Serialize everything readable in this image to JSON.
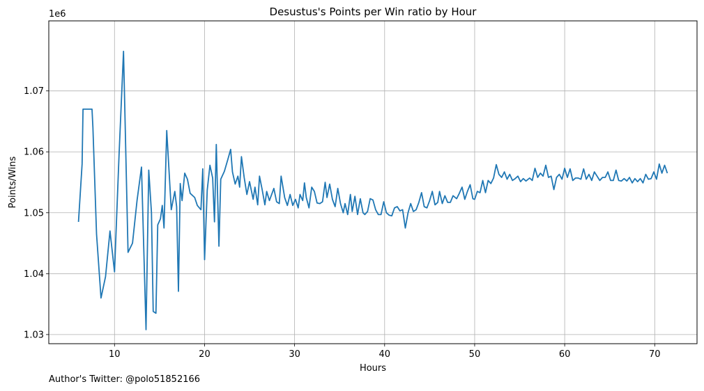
{
  "credit": "Author's Twitter: @polo51852166",
  "chart_data": {
    "type": "line",
    "title": "Desustus's Points per Win ratio by Hour",
    "xlabel": "Hours",
    "ylabel": "Points/Wins",
    "y_multiplier_label": "1e6",
    "xlim": [
      2.7,
      74.7
    ],
    "ylim": [
      1.0285,
      1.0815
    ],
    "x_ticks": [
      10,
      20,
      30,
      40,
      50,
      60,
      70
    ],
    "x_tick_labels": [
      "10",
      "20",
      "30",
      "40",
      "50",
      "60",
      "70"
    ],
    "y_ticks": [
      1.03,
      1.04,
      1.05,
      1.06,
      1.07
    ],
    "y_tick_labels": [
      "1.03",
      "1.04",
      "1.05",
      "1.06",
      "1.07"
    ],
    "grid": true,
    "color": "#1f77b4",
    "series": [
      {
        "values": [
          [
            6.0,
            1.0485
          ],
          [
            6.4,
            1.058
          ],
          [
            6.5,
            1.067
          ],
          [
            7.5,
            1.067
          ],
          [
            7.6,
            1.064
          ],
          [
            8.0,
            1.0465
          ],
          [
            8.5,
            1.036
          ],
          [
            9.0,
            1.0395
          ],
          [
            9.5,
            1.047
          ],
          [
            10.0,
            1.0403
          ],
          [
            10.5,
            1.0595
          ],
          [
            11.0,
            1.0765
          ],
          [
            11.5,
            1.0435
          ],
          [
            12.0,
            1.045
          ],
          [
            12.5,
            1.052
          ],
          [
            13.0,
            1.0575
          ],
          [
            13.5,
            1.0308
          ],
          [
            13.8,
            1.057
          ],
          [
            14.1,
            1.05
          ],
          [
            14.3,
            1.0338
          ],
          [
            14.6,
            1.0335
          ],
          [
            14.8,
            1.048
          ],
          [
            15.1,
            1.049
          ],
          [
            15.3,
            1.0512
          ],
          [
            15.5,
            1.0475
          ],
          [
            15.8,
            1.0635
          ],
          [
            16.3,
            1.0505
          ],
          [
            16.7,
            1.0535
          ],
          [
            16.9,
            1.051
          ],
          [
            17.1,
            1.0371
          ],
          [
            17.3,
            1.0548
          ],
          [
            17.5,
            1.052
          ],
          [
            17.8,
            1.0565
          ],
          [
            18.1,
            1.0555
          ],
          [
            18.4,
            1.0532
          ],
          [
            18.9,
            1.0525
          ],
          [
            19.2,
            1.0512
          ],
          [
            19.6,
            1.0505
          ],
          [
            19.8,
            1.0572
          ],
          [
            20.0,
            1.0423
          ],
          [
            20.3,
            1.0537
          ],
          [
            20.6,
            1.0578
          ],
          [
            20.9,
            1.0557
          ],
          [
            21.1,
            1.0485
          ],
          [
            21.3,
            1.0612
          ],
          [
            21.6,
            1.0445
          ],
          [
            21.8,
            1.0555
          ],
          [
            22.2,
            1.0568
          ],
          [
            22.6,
            1.0588
          ],
          [
            22.9,
            1.0604
          ],
          [
            23.1,
            1.0567
          ],
          [
            23.4,
            1.0547
          ],
          [
            23.7,
            1.056
          ],
          [
            23.9,
            1.0542
          ],
          [
            24.1,
            1.0592
          ],
          [
            24.4,
            1.0558
          ],
          [
            24.7,
            1.053
          ],
          [
            25.0,
            1.0551
          ],
          [
            25.4,
            1.0522
          ],
          [
            25.6,
            1.0542
          ],
          [
            25.9,
            1.0513
          ],
          [
            26.1,
            1.056
          ],
          [
            26.4,
            1.0538
          ],
          [
            26.7,
            1.0513
          ],
          [
            26.9,
            1.0535
          ],
          [
            27.2,
            1.052
          ],
          [
            27.7,
            1.054
          ],
          [
            28.0,
            1.0518
          ],
          [
            28.3,
            1.0515
          ],
          [
            28.5,
            1.056
          ],
          [
            28.9,
            1.0525
          ],
          [
            29.2,
            1.0512
          ],
          [
            29.5,
            1.053
          ],
          [
            29.8,
            1.0512
          ],
          [
            30.1,
            1.0522
          ],
          [
            30.4,
            1.0508
          ],
          [
            30.6,
            1.053
          ],
          [
            30.9,
            1.052
          ],
          [
            31.1,
            1.0549
          ],
          [
            31.3,
            1.0525
          ],
          [
            31.6,
            1.0508
          ],
          [
            31.9,
            1.0542
          ],
          [
            32.2,
            1.0535
          ],
          [
            32.5,
            1.0516
          ],
          [
            32.8,
            1.0515
          ],
          [
            33.1,
            1.0518
          ],
          [
            33.4,
            1.055
          ],
          [
            33.6,
            1.0525
          ],
          [
            33.9,
            1.0547
          ],
          [
            34.2,
            1.0522
          ],
          [
            34.5,
            1.051
          ],
          [
            34.8,
            1.054
          ],
          [
            35.1,
            1.0515
          ],
          [
            35.4,
            1.05
          ],
          [
            35.6,
            1.0515
          ],
          [
            35.9,
            1.0497
          ],
          [
            36.2,
            1.053
          ],
          [
            36.4,
            1.0502
          ],
          [
            36.7,
            1.0527
          ],
          [
            37.0,
            1.0497
          ],
          [
            37.3,
            1.0523
          ],
          [
            37.6,
            1.05
          ],
          [
            37.8,
            1.0497
          ],
          [
            38.1,
            1.0502
          ],
          [
            38.4,
            1.0523
          ],
          [
            38.7,
            1.0521
          ],
          [
            39.0,
            1.0505
          ],
          [
            39.3,
            1.0497
          ],
          [
            39.6,
            1.0497
          ],
          [
            39.9,
            1.0518
          ],
          [
            40.2,
            1.05
          ],
          [
            40.5,
            1.0496
          ],
          [
            40.8,
            1.0495
          ],
          [
            41.1,
            1.0508
          ],
          [
            41.4,
            1.051
          ],
          [
            41.7,
            1.0503
          ],
          [
            42.0,
            1.0505
          ],
          [
            42.3,
            1.0475
          ],
          [
            42.6,
            1.05
          ],
          [
            42.9,
            1.0515
          ],
          [
            43.2,
            1.0502
          ],
          [
            43.5,
            1.0505
          ],
          [
            43.8,
            1.0517
          ],
          [
            44.1,
            1.0533
          ],
          [
            44.4,
            1.051
          ],
          [
            44.7,
            1.0508
          ],
          [
            45.0,
            1.052
          ],
          [
            45.3,
            1.0535
          ],
          [
            45.6,
            1.0513
          ],
          [
            45.9,
            1.0517
          ],
          [
            46.1,
            1.0535
          ],
          [
            46.4,
            1.0515
          ],
          [
            46.7,
            1.0528
          ],
          [
            47.0,
            1.0517
          ],
          [
            47.3,
            1.0517
          ],
          [
            47.6,
            1.0528
          ],
          [
            48.0,
            1.0523
          ],
          [
            48.3,
            1.0532
          ],
          [
            48.6,
            1.0542
          ],
          [
            48.9,
            1.0522
          ],
          [
            49.2,
            1.0535
          ],
          [
            49.5,
            1.0546
          ],
          [
            49.8,
            1.0523
          ],
          [
            50.0,
            1.0522
          ],
          [
            50.3,
            1.0535
          ],
          [
            50.6,
            1.0533
          ],
          [
            50.9,
            1.0553
          ],
          [
            51.2,
            1.0533
          ],
          [
            51.5,
            1.0553
          ],
          [
            51.8,
            1.0548
          ],
          [
            52.1,
            1.0557
          ],
          [
            52.4,
            1.0579
          ],
          [
            52.7,
            1.0563
          ],
          [
            53.0,
            1.0558
          ],
          [
            53.3,
            1.0567
          ],
          [
            53.6,
            1.0555
          ],
          [
            53.9,
            1.0563
          ],
          [
            54.2,
            1.0553
          ],
          [
            54.5,
            1.0556
          ],
          [
            54.8,
            1.056
          ],
          [
            55.1,
            1.0551
          ],
          [
            55.4,
            1.0556
          ],
          [
            55.7,
            1.0552
          ],
          [
            56.1,
            1.0557
          ],
          [
            56.4,
            1.0553
          ],
          [
            56.7,
            1.0573
          ],
          [
            57.0,
            1.0558
          ],
          [
            57.3,
            1.0565
          ],
          [
            57.6,
            1.056
          ],
          [
            57.9,
            1.0578
          ],
          [
            58.2,
            1.0558
          ],
          [
            58.5,
            1.056
          ],
          [
            58.8,
            1.0538
          ],
          [
            59.1,
            1.0558
          ],
          [
            59.4,
            1.0563
          ],
          [
            59.7,
            1.0555
          ],
          [
            60.0,
            1.0573
          ],
          [
            60.3,
            1.0558
          ],
          [
            60.6,
            1.0572
          ],
          [
            60.9,
            1.0553
          ],
          [
            61.2,
            1.0557
          ],
          [
            61.5,
            1.0557
          ],
          [
            61.8,
            1.0555
          ],
          [
            62.1,
            1.0572
          ],
          [
            62.4,
            1.0555
          ],
          [
            62.7,
            1.0563
          ],
          [
            63.0,
            1.0553
          ],
          [
            63.3,
            1.0567
          ],
          [
            63.6,
            1.056
          ],
          [
            63.9,
            1.0553
          ],
          [
            64.2,
            1.0558
          ],
          [
            64.5,
            1.0558
          ],
          [
            64.8,
            1.0567
          ],
          [
            65.1,
            1.0553
          ],
          [
            65.4,
            1.0553
          ],
          [
            65.7,
            1.057
          ],
          [
            66.0,
            1.0553
          ],
          [
            66.3,
            1.0552
          ],
          [
            66.6,
            1.0556
          ],
          [
            66.9,
            1.0552
          ],
          [
            67.2,
            1.0558
          ],
          [
            67.5,
            1.0549
          ],
          [
            67.8,
            1.0556
          ],
          [
            68.1,
            1.0551
          ],
          [
            68.4,
            1.0556
          ],
          [
            68.7,
            1.0549
          ],
          [
            69.0,
            1.0563
          ],
          [
            69.3,
            1.0555
          ],
          [
            69.6,
            1.0556
          ],
          [
            69.9,
            1.0567
          ],
          [
            70.2,
            1.0555
          ],
          [
            70.5,
            1.058
          ],
          [
            70.8,
            1.0565
          ],
          [
            71.1,
            1.0578
          ],
          [
            71.4,
            1.0565
          ]
        ]
      }
    ]
  }
}
